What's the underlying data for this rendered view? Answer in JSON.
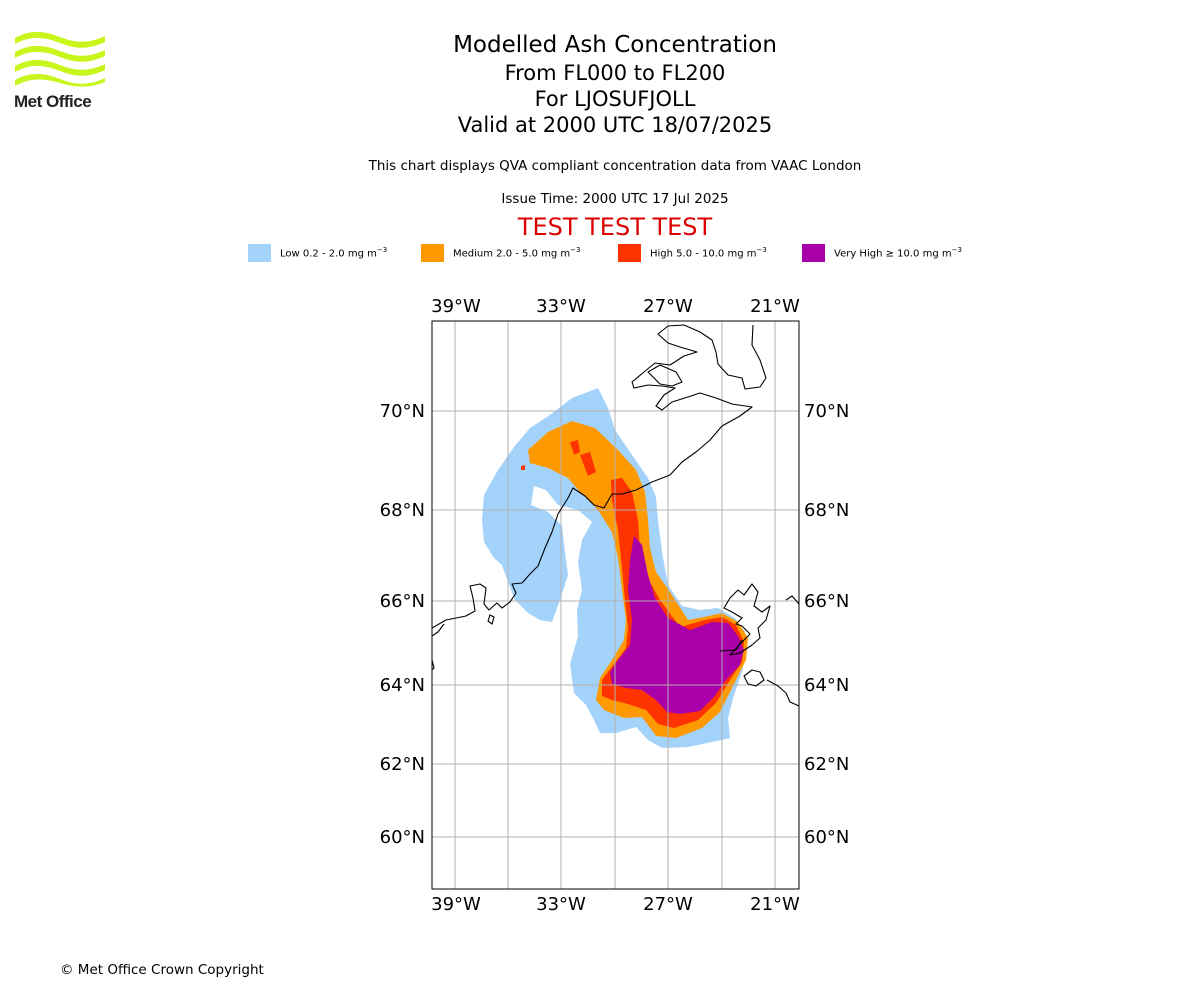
{
  "logo": {
    "name": "Met Office",
    "text": "Met Office"
  },
  "title": {
    "line1": "Modelled Ash Concentration",
    "line2": "From FL000 to FL200",
    "line3": "For LJOSUFJOLL",
    "line4": "Valid at 2000 UTC 18/07/2025"
  },
  "subtitle": "This chart displays QVA compliant concentration data from VAAC London",
  "issue_time": "Issue Time: 2000 UTC 17 Jul 2025",
  "test_banner": "TEST TEST TEST",
  "legend": [
    {
      "label": "Low 0.2 - 2.0 mg m",
      "exp": "−3",
      "color": "#a3d2fb"
    },
    {
      "label": "Medium 2.0 - 5.0 mg m",
      "exp": "−3",
      "color": "#ff9900"
    },
    {
      "label": "High 5.0 - 10.0 mg m",
      "exp": "−3",
      "color": "#ff3300"
    },
    {
      "label": "Very High ≥ 10.0 mg m",
      "exp": "−3",
      "color": "#aa00aa"
    }
  ],
  "map": {
    "lon_ticks": [
      "39°W",
      "33°W",
      "27°W",
      "21°W"
    ],
    "lat_ticks": [
      "70°N",
      "68°N",
      "66°N",
      "64°N",
      "62°N",
      "60°N"
    ],
    "grid": true
  },
  "copyright": "© Met Office Crown Copyright"
}
